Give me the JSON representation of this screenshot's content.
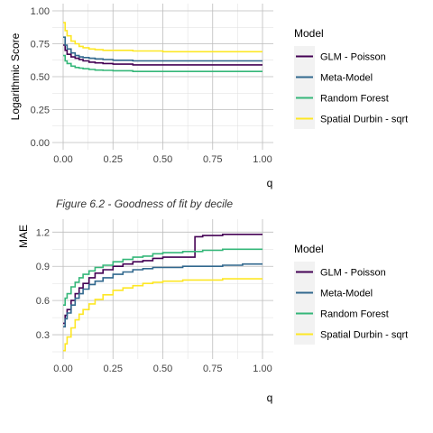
{
  "caption": "Figure 6.2 - Goodness of fit by decile",
  "colors": {
    "GLM - Poisson": "#440154",
    "Meta-Model": "#31688e",
    "Random Forest": "#35b779",
    "Spatial Durbin - sqrt": "#fde725"
  },
  "chart_data": [
    {
      "type": "line",
      "title": "",
      "xlabel": "q",
      "ylabel": "Logarithmic Score",
      "xlim": [
        0,
        1
      ],
      "ylim": [
        0,
        1.0
      ],
      "x_ticks": [
        "0.00",
        "0.25",
        "0.50",
        "0.75",
        "1.00"
      ],
      "y_ticks": [
        "0.00",
        "0.25",
        "0.50",
        "0.75",
        "1.00"
      ],
      "grid": true,
      "legend_title": "Model",
      "legend_position": "right",
      "series": [
        {
          "name": "GLM - Poisson",
          "x": [
            0,
            0.01,
            0.02,
            0.04,
            0.06,
            0.08,
            0.1,
            0.13,
            0.16,
            0.2,
            0.25,
            0.35,
            0.5,
            0.75,
            1.0
          ],
          "y": [
            0.74,
            0.7,
            0.67,
            0.65,
            0.64,
            0.63,
            0.62,
            0.61,
            0.605,
            0.6,
            0.595,
            0.59,
            0.59,
            0.59,
            0.59
          ]
        },
        {
          "name": "Meta-Model",
          "x": [
            0,
            0.01,
            0.02,
            0.04,
            0.06,
            0.08,
            0.1,
            0.13,
            0.16,
            0.2,
            0.25,
            0.35,
            0.5,
            0.75,
            1.0
          ],
          "y": [
            0.8,
            0.74,
            0.71,
            0.68,
            0.66,
            0.65,
            0.645,
            0.64,
            0.635,
            0.63,
            0.625,
            0.62,
            0.62,
            0.62,
            0.62
          ]
        },
        {
          "name": "Random Forest",
          "x": [
            0,
            0.01,
            0.02,
            0.04,
            0.06,
            0.08,
            0.1,
            0.13,
            0.16,
            0.2,
            0.25,
            0.35,
            0.5,
            0.75,
            1.0
          ],
          "y": [
            0.66,
            0.62,
            0.6,
            0.58,
            0.57,
            0.565,
            0.56,
            0.555,
            0.55,
            0.548,
            0.545,
            0.54,
            0.54,
            0.54,
            0.54
          ]
        },
        {
          "name": "Spatial Durbin - sqrt",
          "x": [
            0,
            0.01,
            0.02,
            0.04,
            0.06,
            0.08,
            0.1,
            0.13,
            0.16,
            0.2,
            0.25,
            0.35,
            0.5,
            0.75,
            1.0
          ],
          "y": [
            0.91,
            0.85,
            0.81,
            0.77,
            0.75,
            0.73,
            0.72,
            0.71,
            0.705,
            0.7,
            0.7,
            0.695,
            0.69,
            0.69,
            0.69
          ]
        }
      ]
    },
    {
      "type": "line",
      "title": "",
      "xlabel": "q",
      "ylabel": "MAE",
      "xlim": [
        0,
        1
      ],
      "ylim": [
        0.15,
        1.25
      ],
      "x_ticks": [
        "0.00",
        "0.25",
        "0.50",
        "0.75",
        "1.00"
      ],
      "y_ticks": [
        "0.3",
        "0.6",
        "0.9",
        "1.2"
      ],
      "grid": true,
      "legend_title": "Model",
      "legend_position": "right",
      "series": [
        {
          "name": "GLM - Poisson",
          "x": [
            0,
            0.01,
            0.02,
            0.04,
            0.06,
            0.08,
            0.1,
            0.13,
            0.16,
            0.2,
            0.25,
            0.3,
            0.35,
            0.4,
            0.45,
            0.5,
            0.55,
            0.6,
            0.659,
            0.661,
            0.7,
            0.8,
            0.9,
            1.0
          ],
          "y": [
            0.4,
            0.47,
            0.52,
            0.6,
            0.66,
            0.71,
            0.75,
            0.8,
            0.84,
            0.87,
            0.9,
            0.92,
            0.94,
            0.95,
            0.97,
            0.98,
            0.98,
            0.98,
            0.98,
            1.16,
            1.17,
            1.18,
            1.18,
            1.18
          ]
        },
        {
          "name": "Meta-Model",
          "x": [
            0,
            0.01,
            0.02,
            0.04,
            0.06,
            0.08,
            0.1,
            0.13,
            0.16,
            0.2,
            0.25,
            0.3,
            0.35,
            0.4,
            0.45,
            0.5,
            0.6,
            0.7,
            0.8,
            0.9,
            1.0
          ],
          "y": [
            0.37,
            0.44,
            0.49,
            0.56,
            0.62,
            0.66,
            0.7,
            0.74,
            0.77,
            0.8,
            0.83,
            0.85,
            0.87,
            0.88,
            0.89,
            0.89,
            0.9,
            0.9,
            0.91,
            0.92,
            0.92
          ]
        },
        {
          "name": "Random Forest",
          "x": [
            0,
            0.01,
            0.02,
            0.04,
            0.06,
            0.08,
            0.1,
            0.13,
            0.16,
            0.2,
            0.25,
            0.3,
            0.35,
            0.4,
            0.45,
            0.5,
            0.6,
            0.7,
            0.8,
            0.9,
            1.0
          ],
          "y": [
            0.56,
            0.62,
            0.66,
            0.72,
            0.76,
            0.8,
            0.83,
            0.86,
            0.89,
            0.91,
            0.94,
            0.96,
            0.98,
            0.99,
            1.01,
            1.02,
            1.03,
            1.04,
            1.05,
            1.05,
            1.05
          ]
        },
        {
          "name": "Spatial Durbin - sqrt",
          "x": [
            0,
            0.01,
            0.02,
            0.04,
            0.06,
            0.08,
            0.1,
            0.13,
            0.16,
            0.2,
            0.25,
            0.3,
            0.35,
            0.4,
            0.45,
            0.5,
            0.6,
            0.7,
            0.8,
            0.9,
            1.0
          ],
          "y": [
            0.16,
            0.22,
            0.28,
            0.36,
            0.43,
            0.48,
            0.52,
            0.57,
            0.61,
            0.65,
            0.69,
            0.71,
            0.73,
            0.75,
            0.76,
            0.77,
            0.78,
            0.78,
            0.79,
            0.79,
            0.79
          ]
        }
      ]
    }
  ]
}
